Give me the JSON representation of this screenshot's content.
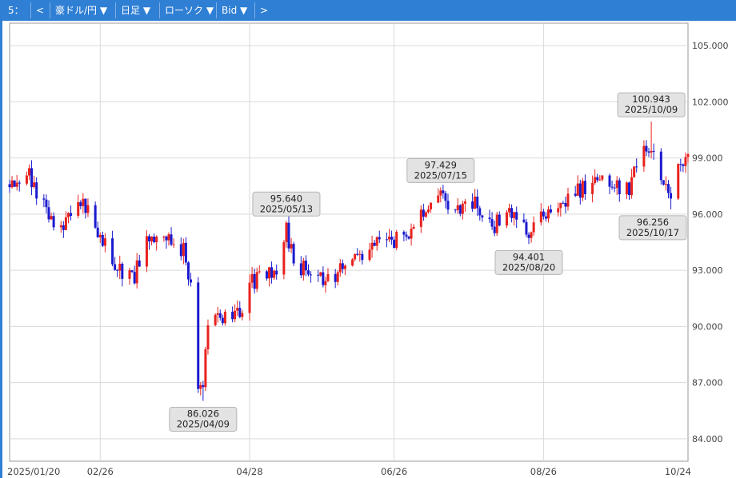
{
  "toolbar": {
    "items": [
      "5：",
      "<",
      "豪ドル/円 ▼",
      "日足 ▼",
      "ローソク ▼",
      "Bid ▼",
      ">"
    ]
  },
  "colors": {
    "up": "#e8221e",
    "down": "#1a1acf",
    "toolbar": "#2f7fd4",
    "grid": "#d9d9d9"
  },
  "chart_data": {
    "type": "candlestick",
    "instrument": "豪ドル/円",
    "timeframe": "日足",
    "price_type": "Bid",
    "ylim": [
      82.8,
      106.2
    ],
    "y_ticks": [
      "84.000",
      "87.000",
      "90.000",
      "93.000",
      "96.000",
      "99.000",
      "102.000",
      "105.000"
    ],
    "x_ticks": [
      "2025/01/20",
      "02/26",
      "04/28",
      "06/26",
      "08/26",
      "10/24"
    ],
    "grid": true,
    "anchors": [
      [
        "2025-01-20",
        97.6
      ],
      [
        "2025-01-27",
        98.5
      ],
      [
        "2025-02-03",
        96.3
      ],
      [
        "2025-02-10",
        95.2
      ],
      [
        "2025-02-17",
        96.8
      ],
      [
        "2025-02-26",
        95.0
      ],
      [
        "2025-03-05",
        93.0
      ],
      [
        "2025-03-12",
        92.8
      ],
      [
        "2025-03-19",
        95.0
      ],
      [
        "2025-03-26",
        94.6
      ],
      [
        "2025-04-01",
        94.0
      ],
      [
        "2025-04-04",
        92.0
      ],
      [
        "2025-04-07",
        87.0
      ],
      [
        "2025-04-09",
        87.0
      ],
      [
        "2025-04-11",
        90.3
      ],
      [
        "2025-04-18",
        90.4
      ],
      [
        "2025-04-25",
        91.0
      ],
      [
        "2025-04-28",
        92.2
      ],
      [
        "2025-05-05",
        92.9
      ],
      [
        "2025-05-09",
        93.2
      ],
      [
        "2025-05-13",
        95.2
      ],
      [
        "2025-05-16",
        93.4
      ],
      [
        "2025-05-23",
        92.8
      ],
      [
        "2025-05-30",
        92.5
      ],
      [
        "2025-06-06",
        93.2
      ],
      [
        "2025-06-13",
        93.6
      ],
      [
        "2025-06-20",
        94.5
      ],
      [
        "2025-06-26",
        94.5
      ],
      [
        "2025-07-03",
        95.3
      ],
      [
        "2025-07-10",
        96.5
      ],
      [
        "2025-07-15",
        96.9
      ],
      [
        "2025-07-22",
        96.4
      ],
      [
        "2025-07-29",
        96.8
      ],
      [
        "2025-08-05",
        95.3
      ],
      [
        "2025-08-12",
        96.2
      ],
      [
        "2025-08-20",
        95.1
      ],
      [
        "2025-08-26",
        95.8
      ],
      [
        "2025-09-02",
        96.5
      ],
      [
        "2025-09-09",
        97.2
      ],
      [
        "2025-09-16",
        98.0
      ],
      [
        "2025-09-23",
        97.6
      ],
      [
        "2025-09-30",
        97.5
      ],
      [
        "2025-10-06",
        99.2
      ],
      [
        "2025-10-09",
        99.5
      ],
      [
        "2025-10-13",
        98.0
      ],
      [
        "2025-10-17",
        97.3
      ],
      [
        "2025-10-21",
        98.5
      ],
      [
        "2025-10-24",
        99.3
      ]
    ],
    "annotations": [
      {
        "type": "low",
        "value": "86.026",
        "date": "2025/04/09"
      },
      {
        "type": "high",
        "value": "95.640",
        "date": "2025/05/13"
      },
      {
        "type": "high",
        "value": "97.429",
        "date": "2025/07/15"
      },
      {
        "type": "low",
        "value": "94.401",
        "date": "2025/08/20"
      },
      {
        "type": "high",
        "value": "100.943",
        "date": "2025/10/09"
      },
      {
        "type": "low",
        "value": "96.256",
        "date": "2025/10/17"
      }
    ]
  }
}
